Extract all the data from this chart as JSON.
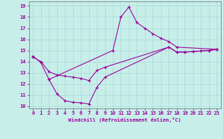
{
  "xlabel": "Windchill (Refroidissement éolien,°C)",
  "xlim": [
    -0.5,
    23.5
  ],
  "ylim": [
    9.8,
    19.4
  ],
  "yticks": [
    10,
    11,
    12,
    13,
    14,
    15,
    16,
    17,
    18,
    19
  ],
  "xticks": [
    0,
    1,
    2,
    3,
    4,
    5,
    6,
    7,
    8,
    9,
    10,
    11,
    12,
    13,
    14,
    15,
    16,
    17,
    18,
    19,
    20,
    21,
    22,
    23
  ],
  "background_color": "#c8eeea",
  "grid_color": "#aaddda",
  "line_color": "#990099",
  "series": [
    {
      "x": [
        0,
        1,
        2,
        10,
        11,
        12,
        13,
        14,
        15,
        16,
        17,
        18,
        23
      ],
      "y": [
        14.5,
        13.9,
        12.4,
        15.0,
        18.0,
        18.9,
        17.5,
        17.0,
        16.5,
        16.1,
        15.8,
        15.3,
        15.1
      ]
    },
    {
      "x": [
        0,
        1,
        2,
        3,
        4,
        5,
        6,
        7,
        8,
        9,
        17,
        18,
        19,
        20,
        21,
        22,
        23
      ],
      "y": [
        14.4,
        14.0,
        13.1,
        12.8,
        12.7,
        12.6,
        12.5,
        12.3,
        13.2,
        13.5,
        15.3,
        14.85,
        14.85,
        14.9,
        14.95,
        15.0,
        15.1
      ]
    },
    {
      "x": [
        2,
        3,
        4,
        5,
        6,
        7,
        8,
        9,
        17,
        18,
        19,
        20,
        21,
        22,
        23
      ],
      "y": [
        12.4,
        11.1,
        10.5,
        10.35,
        10.3,
        10.2,
        11.7,
        12.6,
        15.3,
        14.85,
        14.85,
        14.9,
        14.95,
        15.0,
        15.1
      ]
    }
  ]
}
